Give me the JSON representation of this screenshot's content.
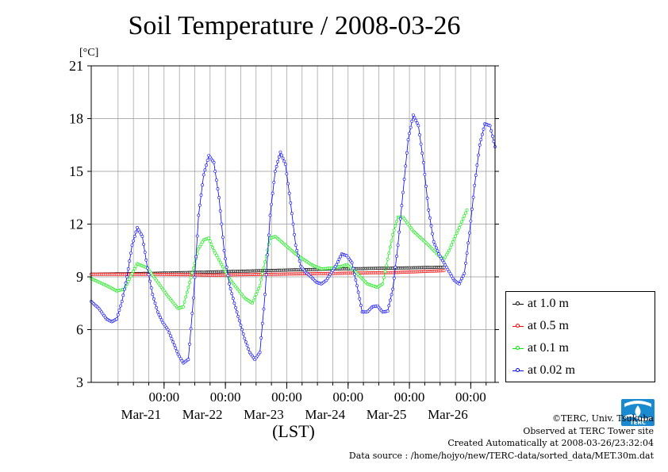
{
  "title": "Soil Temperature / 2008-03-26",
  "unit_label": "[°C]",
  "xaxis_label": "(LST)",
  "legend": [
    {
      "label": "at 1.0 m",
      "color": "#000000"
    },
    {
      "label": "at 0.5 m",
      "color": "#ff0000"
    },
    {
      "label": "at 0.1 m",
      "color": "#00ee00"
    },
    {
      "label": "at 0.02 m",
      "color": "#0000ff"
    }
  ],
  "credits": {
    "copyright": "©TERC, Univ. Tsukuba",
    "observed": "Observed at TERC Tower site",
    "created": "Created Automatically at 2008-03-26/23:32:04",
    "source": "Data source : /home/hojyo/new/TERC-data/sorted_data/MET.30m.dat"
  },
  "logo_text": "TERC",
  "chart_data": {
    "type": "line",
    "title": "Soil Temperature / 2008-03-26",
    "ylabel": "[°C]",
    "xlabel": "(LST)",
    "ylim": [
      3,
      21
    ],
    "y_ticks": [
      3,
      6,
      9,
      12,
      15,
      18,
      21
    ],
    "xlim": [
      "2008-03-20 00:00",
      "2008-03-26 00:00"
    ],
    "x_unit": "hours since 2008-03-20 00:00",
    "x_tick_labels": [
      {
        "time": "00:00",
        "date": "Mar-21"
      },
      {
        "time": "00:00",
        "date": "Mar-22"
      },
      {
        "time": "00:00",
        "date": "Mar-23"
      },
      {
        "time": "00:00",
        "date": "Mar-24"
      },
      {
        "time": "00:00",
        "date": "Mar-25"
      },
      {
        "time": "00:00",
        "date": "Mar-26"
      }
    ],
    "grid": true,
    "legend_position": "right",
    "series": [
      {
        "name": "at 1.0 m",
        "color": "#000000",
        "points": [
          [
            0,
            9.15
          ],
          [
            24,
            9.2
          ],
          [
            48,
            9.28
          ],
          [
            72,
            9.37
          ],
          [
            96,
            9.45
          ],
          [
            120,
            9.5
          ],
          [
            138,
            9.55
          ]
        ]
      },
      {
        "name": "at 0.5 m",
        "color": "#ff0000",
        "points": [
          [
            0,
            9.15
          ],
          [
            24,
            9.15
          ],
          [
            48,
            9.1
          ],
          [
            72,
            9.15
          ],
          [
            96,
            9.2
          ],
          [
            120,
            9.25
          ],
          [
            138,
            9.35
          ]
        ]
      },
      {
        "name": "at 0.1 m",
        "color": "#00ee00",
        "points": [
          [
            0,
            8.9
          ],
          [
            6,
            8.5
          ],
          [
            10,
            8.2
          ],
          [
            13,
            8.3
          ],
          [
            18,
            9.75
          ],
          [
            22,
            9.5
          ],
          [
            26,
            8.7
          ],
          [
            30,
            7.9
          ],
          [
            34,
            7.2
          ],
          [
            36,
            7.3
          ],
          [
            42,
            10.6
          ],
          [
            44,
            11.1
          ],
          [
            46,
            11.2
          ],
          [
            48,
            10.5
          ],
          [
            54,
            8.9
          ],
          [
            60,
            7.8
          ],
          [
            63,
            7.5
          ],
          [
            66,
            8.5
          ],
          [
            70,
            11.2
          ],
          [
            72,
            11.3
          ],
          [
            76,
            10.8
          ],
          [
            80,
            10.3
          ],
          [
            86,
            9.7
          ],
          [
            90,
            9.45
          ],
          [
            94,
            9.5
          ],
          [
            98,
            9.6
          ],
          [
            100,
            9.7
          ],
          [
            104,
            9.2
          ],
          [
            108,
            8.6
          ],
          [
            112,
            8.4
          ],
          [
            114,
            8.6
          ],
          [
            118,
            11.4
          ],
          [
            120,
            12.4
          ],
          [
            122,
            12.4
          ],
          [
            126,
            11.6
          ],
          [
            132,
            10.8
          ],
          [
            136,
            10.2
          ],
          [
            138,
            10.0
          ],
          [
            140,
            10.5
          ],
          [
            144,
            11.8
          ],
          [
            147,
            12.8
          ]
        ]
      },
      {
        "name": "at 0.02 m",
        "color": "#0000ff",
        "points": [
          [
            0,
            7.6
          ],
          [
            3,
            7.2
          ],
          [
            6,
            6.6
          ],
          [
            8,
            6.45
          ],
          [
            10,
            6.6
          ],
          [
            12,
            7.6
          ],
          [
            14,
            9.0
          ],
          [
            16,
            10.8
          ],
          [
            18,
            11.8
          ],
          [
            20,
            11.3
          ],
          [
            22,
            9.5
          ],
          [
            24,
            8.0
          ],
          [
            26,
            7.0
          ],
          [
            28,
            6.4
          ],
          [
            30,
            6.0
          ],
          [
            32,
            5.3
          ],
          [
            34,
            4.6
          ],
          [
            36,
            4.1
          ],
          [
            38,
            4.3
          ],
          [
            40,
            7.8
          ],
          [
            42,
            12.5
          ],
          [
            44,
            14.8
          ],
          [
            46,
            15.9
          ],
          [
            48,
            15.5
          ],
          [
            50,
            13.5
          ],
          [
            52,
            10.5
          ],
          [
            54,
            8.6
          ],
          [
            56,
            7.5
          ],
          [
            58,
            6.5
          ],
          [
            60,
            5.5
          ],
          [
            62,
            4.7
          ],
          [
            64,
            4.3
          ],
          [
            66,
            4.7
          ],
          [
            68,
            8.0
          ],
          [
            70,
            12.5
          ],
          [
            72,
            15.0
          ],
          [
            74,
            16.1
          ],
          [
            76,
            15.4
          ],
          [
            78,
            13.2
          ],
          [
            80,
            10.8
          ],
          [
            82,
            9.6
          ],
          [
            84,
            9.25
          ],
          [
            86,
            9.0
          ],
          [
            88,
            8.7
          ],
          [
            90,
            8.6
          ],
          [
            92,
            8.8
          ],
          [
            96,
            9.7
          ],
          [
            98,
            10.3
          ],
          [
            100,
            10.2
          ],
          [
            102,
            9.8
          ],
          [
            104,
            8.5
          ],
          [
            106,
            7.0
          ],
          [
            108,
            7.0
          ],
          [
            110,
            7.3
          ],
          [
            112,
            7.35
          ],
          [
            114,
            7.0
          ],
          [
            116,
            7.05
          ],
          [
            118,
            8.3
          ],
          [
            120,
            10.8
          ],
          [
            122,
            13.8
          ],
          [
            124,
            16.8
          ],
          [
            126,
            18.2
          ],
          [
            128,
            17.6
          ],
          [
            130,
            15.5
          ],
          [
            132,
            12.8
          ],
          [
            134,
            11.0
          ],
          [
            136,
            10.3
          ],
          [
            138,
            9.8
          ],
          [
            140,
            9.3
          ],
          [
            142,
            8.8
          ],
          [
            144,
            8.6
          ],
          [
            146,
            9.2
          ],
          [
            148,
            11.5
          ],
          [
            150,
            14.2
          ],
          [
            152,
            16.5
          ],
          [
            154,
            17.7
          ],
          [
            156,
            17.6
          ],
          [
            158,
            16.4
          ]
        ]
      }
    ]
  }
}
